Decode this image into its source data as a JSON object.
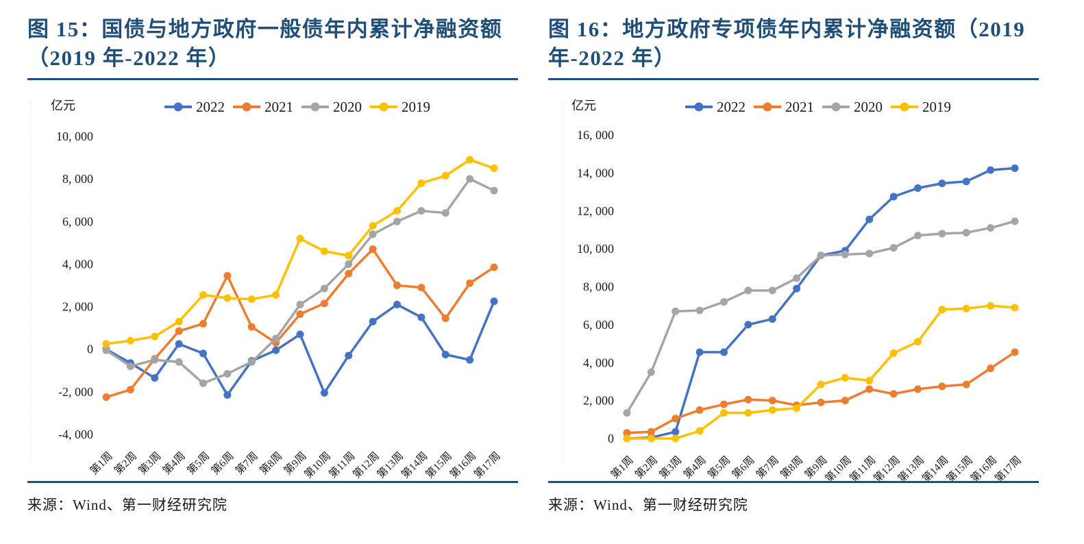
{
  "colors": {
    "accent_navy": "#1F4E79",
    "series_2022": "#4472C4",
    "series_2021": "#ED7D31",
    "series_2020": "#A5A5A5",
    "series_2019": "#FFC000",
    "text": "#1a1a1a"
  },
  "chart_data": [
    {
      "id": "figure-15",
      "type": "line",
      "title": "图 15：国债与地方政府一般债年内累计净融资额（2019 年-2022 年）",
      "unit_label": "亿元",
      "source": "来源：Wind、第一财经研究院",
      "legend_position": "top",
      "grid": false,
      "categories": [
        "第1周",
        "第2周",
        "第3周",
        "第4周",
        "第5周",
        "第6周",
        "第7周",
        "第8周",
        "第9周",
        "第10周",
        "第11周",
        "第12周",
        "第13周",
        "第14周",
        "第15周",
        "第16周",
        "第17周"
      ],
      "ylim": [
        -4000,
        10000
      ],
      "ytick_step": 2000,
      "ytick_labels": [
        "10, 000",
        "8, 000",
        "6, 000",
        "4, 000",
        "2, 000",
        "0",
        "-2, 000",
        "-4, 000"
      ],
      "series": [
        {
          "name": "2022",
          "color": "#4472C4",
          "values": [
            0,
            -650,
            -1350,
            250,
            -200,
            -2150,
            -550,
            -50,
            700,
            -2050,
            -300,
            1300,
            2100,
            1500,
            -250,
            -500,
            2250
          ]
        },
        {
          "name": "2021",
          "color": "#ED7D31",
          "values": [
            -2250,
            -1900,
            -450,
            850,
            1200,
            3450,
            1050,
            300,
            1650,
            2150,
            3550,
            4700,
            3000,
            2900,
            1450,
            3100,
            3850
          ]
        },
        {
          "name": "2020",
          "color": "#A5A5A5",
          "values": [
            -50,
            -800,
            -500,
            -600,
            -1600,
            -1150,
            -600,
            500,
            2100,
            2850,
            4000,
            5400,
            6000,
            6500,
            6400,
            8000,
            7450
          ]
        },
        {
          "name": "2019",
          "color": "#FFC000",
          "values": [
            250,
            400,
            600,
            1300,
            2550,
            2400,
            2350,
            2550,
            5200,
            4600,
            4400,
            5800,
            6500,
            7800,
            8150,
            8900,
            8500
          ]
        }
      ]
    },
    {
      "id": "figure-16",
      "type": "line",
      "title": "图 16：地方政府专项债年内累计净融资额（2019 年-2022 年）",
      "unit_label": "亿元",
      "source": "来源：Wind、第一财经研究院",
      "legend_position": "top",
      "grid": false,
      "categories": [
        "第1周",
        "第2周",
        "第3周",
        "第4周",
        "第5周",
        "第6周",
        "第7周",
        "第8周",
        "第9周",
        "第10周",
        "第11周",
        "第12周",
        "第13周",
        "第14周",
        "第15周",
        "第16周",
        "第17周"
      ],
      "ylim": [
        0,
        16000
      ],
      "ytick_step": 2000,
      "ytick_labels": [
        "16, 000",
        "14, 000",
        "12, 000",
        "10, 000",
        "8, 000",
        "6, 000",
        "4, 000",
        "2, 000",
        "0"
      ],
      "series": [
        {
          "name": "2022",
          "color": "#4472C4",
          "values": [
            0,
            50,
            350,
            4550,
            4550,
            6000,
            6300,
            7900,
            9650,
            9900,
            11550,
            12750,
            13200,
            13450,
            13550,
            14150,
            14250
          ]
        },
        {
          "name": "2021",
          "color": "#ED7D31",
          "values": [
            300,
            350,
            1050,
            1500,
            1800,
            2050,
            2000,
            1750,
            1900,
            2000,
            2600,
            2350,
            2600,
            2750,
            2850,
            3700,
            4550
          ]
        },
        {
          "name": "2020",
          "color": "#A5A5A5",
          "values": [
            1350,
            3500,
            6700,
            6750,
            7200,
            7800,
            7800,
            8450,
            9650,
            9700,
            9750,
            10050,
            10700,
            10800,
            10850,
            11100,
            11450
          ]
        },
        {
          "name": "2019",
          "color": "#FFC000",
          "values": [
            0,
            0,
            0,
            400,
            1350,
            1350,
            1500,
            1600,
            2850,
            3200,
            3050,
            4500,
            5100,
            6800,
            6850,
            7000,
            6900
          ]
        }
      ]
    }
  ]
}
